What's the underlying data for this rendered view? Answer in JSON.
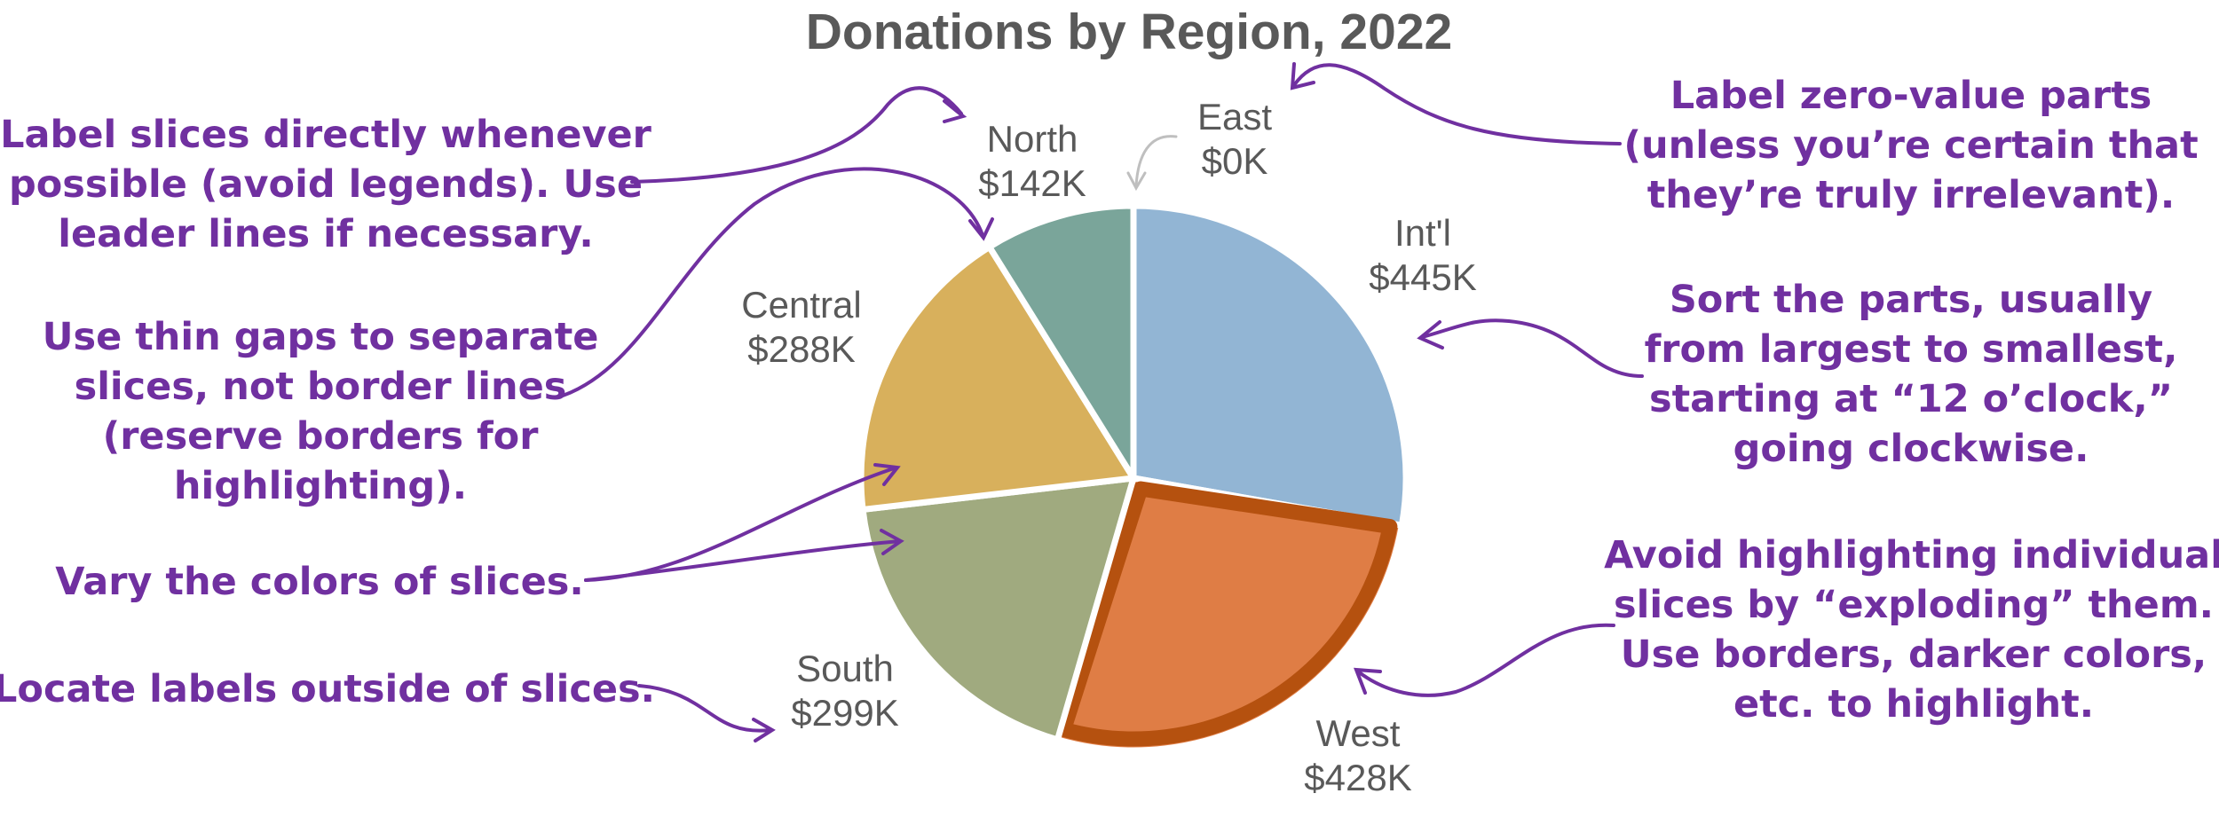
{
  "chart_data": {
    "type": "pie",
    "title": "Donations by Region, 2022",
    "start_angle": "12 o'clock",
    "direction": "clockwise",
    "highlighted": "West",
    "slices": [
      {
        "label": "Int'l",
        "value_label": "$445K",
        "value": 445,
        "color": "#92b5d4"
      },
      {
        "label": "West",
        "value_label": "$428K",
        "value": 428,
        "color": "#df7d45"
      },
      {
        "label": "South",
        "value_label": "$299K",
        "value": 299,
        "color": "#a0aa7f"
      },
      {
        "label": "Central",
        "value_label": "$288K",
        "value": 288,
        "color": "#d8b05c"
      },
      {
        "label": "North",
        "value_label": "$142K",
        "value": 142,
        "color": "#7aa59a"
      },
      {
        "label": "East",
        "value_label": "$0K",
        "value": 0,
        "color": "#bfbfbf"
      }
    ],
    "highlight_border_color": "#b5510f",
    "gap_color": "#ffffff"
  },
  "annotations": [
    {
      "id": "label-directly",
      "lines": [
        "Label slices directly whenever",
        "possible (avoid legends). Use",
        "leader lines if necessary."
      ]
    },
    {
      "id": "thin-gaps",
      "lines": [
        "Use thin gaps to separate",
        "slices, not border lines",
        "(reserve borders for",
        "highlighting)."
      ]
    },
    {
      "id": "vary-colors",
      "lines": [
        "Vary the colors of slices."
      ]
    },
    {
      "id": "labels-outside",
      "lines": [
        "Locate labels outside of slices."
      ]
    },
    {
      "id": "zero-value",
      "lines": [
        "Label zero-value parts",
        "(unless you’re certain that",
        "they’re truly irrelevant)."
      ]
    },
    {
      "id": "sort-parts",
      "lines": [
        "Sort the parts, usually",
        "from largest to smallest,",
        "starting at “12 o’clock,”",
        "going clockwise."
      ]
    },
    {
      "id": "avoid-exploding",
      "lines": [
        "Avoid highlighting individual",
        "slices by “exploding” them.",
        "Use borders, darker colors,",
        "etc. to highlight."
      ]
    }
  ],
  "colors": {
    "annotation": "#7030a0",
    "text": "#595959"
  }
}
